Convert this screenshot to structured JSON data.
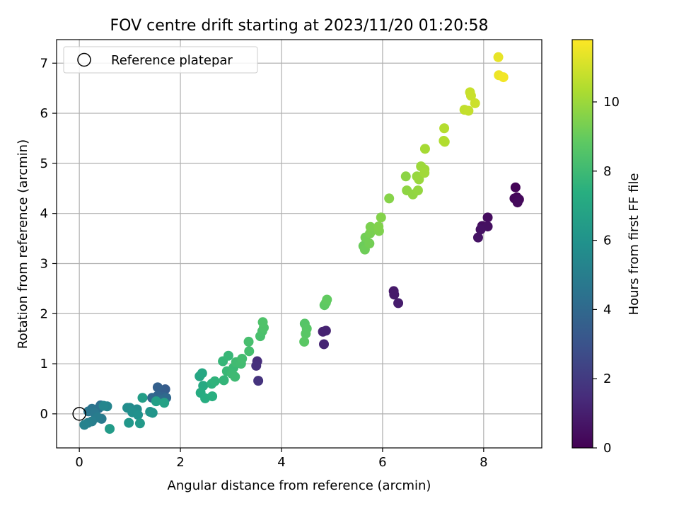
{
  "chart_data": {
    "type": "scatter",
    "title": "FOV centre drift starting at 2023/11/20 01:20:58",
    "xlabel": "Angular distance from reference (arcmin)",
    "ylabel": "Rotation from reference (arcmin)",
    "xlim": [
      -0.45,
      9.15
    ],
    "ylim": [
      -0.68,
      7.47
    ],
    "xticks": [
      0,
      2,
      4,
      6,
      8
    ],
    "yticks": [
      0,
      1,
      2,
      3,
      4,
      5,
      6,
      7
    ],
    "grid": true,
    "legend": {
      "placement": "upper-left",
      "entries": [
        {
          "label": "Reference platepar",
          "marker": "open-circle"
        }
      ]
    },
    "reference_point": {
      "x": 0,
      "y": 0
    },
    "colorbar": {
      "label": "Hours from first FF file",
      "colormap": "viridis",
      "range": [
        0,
        11.8
      ],
      "ticks": [
        0,
        2,
        4,
        6,
        8,
        10
      ]
    },
    "series": [
      {
        "points": [
          {
            "x": 8.63,
            "y": 4.52,
            "c": 0.1
          },
          {
            "x": 8.66,
            "y": 4.32,
            "c": 0.15
          },
          {
            "x": 8.61,
            "y": 4.3,
            "c": 0.2
          },
          {
            "x": 8.7,
            "y": 4.28,
            "c": 0.25
          },
          {
            "x": 8.67,
            "y": 4.22,
            "c": 0.3
          },
          {
            "x": 8.08,
            "y": 3.92,
            "c": 0.4
          },
          {
            "x": 7.97,
            "y": 3.75,
            "c": 0.45
          },
          {
            "x": 8.08,
            "y": 3.74,
            "c": 0.5
          },
          {
            "x": 7.94,
            "y": 3.68,
            "c": 0.55
          },
          {
            "x": 7.89,
            "y": 3.52,
            "c": 0.6
          },
          {
            "x": 6.22,
            "y": 2.45,
            "c": 0.8
          },
          {
            "x": 6.23,
            "y": 2.38,
            "c": 0.85
          },
          {
            "x": 6.31,
            "y": 2.21,
            "c": 0.9
          },
          {
            "x": 4.82,
            "y": 1.64,
            "c": 1.1
          },
          {
            "x": 4.88,
            "y": 1.66,
            "c": 1.15
          },
          {
            "x": 4.84,
            "y": 1.39,
            "c": 1.2
          },
          {
            "x": 3.52,
            "y": 1.05,
            "c": 1.5
          },
          {
            "x": 3.5,
            "y": 0.96,
            "c": 1.6
          },
          {
            "x": 3.54,
            "y": 0.66,
            "c": 1.7
          },
          {
            "x": 1.7,
            "y": 0.49,
            "c": 3.4
          },
          {
            "x": 1.62,
            "y": 0.46,
            "c": 3.5
          },
          {
            "x": 1.55,
            "y": 0.53,
            "c": 3.6
          },
          {
            "x": 1.67,
            "y": 0.34,
            "c": 3.7
          },
          {
            "x": 1.55,
            "y": 0.36,
            "c": 3.8
          },
          {
            "x": 1.44,
            "y": 0.32,
            "c": 3.9
          },
          {
            "x": 1.72,
            "y": 0.32,
            "c": 4.0
          },
          {
            "x": 1.6,
            "y": 0.28,
            "c": 4.1
          },
          {
            "x": 0.42,
            "y": 0.17,
            "c": 4.3
          },
          {
            "x": 0.38,
            "y": 0.11,
            "c": 4.4
          },
          {
            "x": 0.25,
            "y": 0.1,
            "c": 4.5
          },
          {
            "x": 0.18,
            "y": 0.05,
            "c": 4.6
          },
          {
            "x": 0.3,
            "y": 0.02,
            "c": 4.7
          },
          {
            "x": 0.44,
            "y": -0.1,
            "c": 4.8
          },
          {
            "x": 0.36,
            "y": -0.07,
            "c": 4.9
          },
          {
            "x": 0.25,
            "y": -0.15,
            "c": 5.0
          },
          {
            "x": 0.17,
            "y": -0.18,
            "c": 5.1
          },
          {
            "x": 0.1,
            "y": -0.22,
            "c": 5.2
          },
          {
            "x": 0.55,
            "y": 0.15,
            "c": 5.3
          },
          {
            "x": 0.48,
            "y": 0.16,
            "c": 5.4
          },
          {
            "x": 1.0,
            "y": 0.12,
            "c": 5.5
          },
          {
            "x": 1.14,
            "y": 0.09,
            "c": 5.6
          },
          {
            "x": 0.95,
            "y": 0.12,
            "c": 5.7
          },
          {
            "x": 1.05,
            "y": 0.03,
            "c": 5.8
          },
          {
            "x": 1.16,
            "y": -0.02,
            "c": 5.9
          },
          {
            "x": 1.4,
            "y": 0.04,
            "c": 6.0
          },
          {
            "x": 1.45,
            "y": 0.02,
            "c": 6.1
          },
          {
            "x": 0.98,
            "y": -0.18,
            "c": 6.2
          },
          {
            "x": 1.2,
            "y": -0.19,
            "c": 6.3
          },
          {
            "x": 0.6,
            "y": -0.3,
            "c": 6.4
          },
          {
            "x": 1.25,
            "y": 0.32,
            "c": 6.5
          },
          {
            "x": 1.52,
            "y": 0.25,
            "c": 6.6
          },
          {
            "x": 1.68,
            "y": 0.22,
            "c": 6.7
          },
          {
            "x": 2.38,
            "y": 0.75,
            "c": 6.9
          },
          {
            "x": 2.43,
            "y": 0.81,
            "c": 7.0
          },
          {
            "x": 2.45,
            "y": 0.56,
            "c": 7.1
          },
          {
            "x": 2.4,
            "y": 0.42,
            "c": 7.2
          },
          {
            "x": 2.49,
            "y": 0.31,
            "c": 7.3
          },
          {
            "x": 2.63,
            "y": 0.35,
            "c": 7.4
          },
          {
            "x": 2.62,
            "y": 0.6,
            "c": 7.5
          },
          {
            "x": 2.68,
            "y": 0.65,
            "c": 7.6
          },
          {
            "x": 2.86,
            "y": 0.67,
            "c": 7.7
          },
          {
            "x": 2.84,
            "y": 1.05,
            "c": 7.75
          },
          {
            "x": 2.95,
            "y": 1.16,
            "c": 7.8
          },
          {
            "x": 2.92,
            "y": 0.85,
            "c": 7.85
          },
          {
            "x": 3.05,
            "y": 0.92,
            "c": 7.9
          },
          {
            "x": 3.02,
            "y": 0.8,
            "c": 7.95
          },
          {
            "x": 3.08,
            "y": 0.74,
            "c": 8.0
          },
          {
            "x": 3.1,
            "y": 1.03,
            "c": 8.05
          },
          {
            "x": 3.2,
            "y": 1.0,
            "c": 8.1
          },
          {
            "x": 3.22,
            "y": 1.1,
            "c": 8.15
          },
          {
            "x": 3.36,
            "y": 1.25,
            "c": 8.2
          },
          {
            "x": 3.35,
            "y": 1.44,
            "c": 8.25
          },
          {
            "x": 3.58,
            "y": 1.55,
            "c": 8.3
          },
          {
            "x": 3.62,
            "y": 1.65,
            "c": 8.35
          },
          {
            "x": 3.65,
            "y": 1.72,
            "c": 8.4
          },
          {
            "x": 3.63,
            "y": 1.83,
            "c": 8.45
          },
          {
            "x": 4.46,
            "y": 1.8,
            "c": 8.6
          },
          {
            "x": 4.5,
            "y": 1.7,
            "c": 8.65
          },
          {
            "x": 4.48,
            "y": 1.6,
            "c": 8.7
          },
          {
            "x": 4.45,
            "y": 1.44,
            "c": 8.75
          },
          {
            "x": 4.85,
            "y": 2.17,
            "c": 8.8
          },
          {
            "x": 4.88,
            "y": 2.22,
            "c": 8.85
          },
          {
            "x": 4.9,
            "y": 2.28,
            "c": 8.9
          },
          {
            "x": 5.62,
            "y": 3.35,
            "c": 9.1
          },
          {
            "x": 5.65,
            "y": 3.28,
            "c": 9.15
          },
          {
            "x": 5.66,
            "y": 3.52,
            "c": 9.2
          },
          {
            "x": 5.74,
            "y": 3.4,
            "c": 9.25
          },
          {
            "x": 5.75,
            "y": 3.6,
            "c": 9.3
          },
          {
            "x": 5.78,
            "y": 3.65,
            "c": 9.35
          },
          {
            "x": 5.76,
            "y": 3.73,
            "c": 9.4
          },
          {
            "x": 5.93,
            "y": 3.65,
            "c": 9.45
          },
          {
            "x": 5.92,
            "y": 3.74,
            "c": 9.5
          },
          {
            "x": 5.97,
            "y": 3.92,
            "c": 9.55
          },
          {
            "x": 6.13,
            "y": 4.3,
            "c": 9.6
          },
          {
            "x": 6.46,
            "y": 4.74,
            "c": 9.7
          },
          {
            "x": 6.48,
            "y": 4.46,
            "c": 9.75
          },
          {
            "x": 6.6,
            "y": 4.38,
            "c": 9.8
          },
          {
            "x": 6.7,
            "y": 4.46,
            "c": 9.85
          },
          {
            "x": 6.68,
            "y": 4.74,
            "c": 9.9
          },
          {
            "x": 6.72,
            "y": 4.68,
            "c": 9.95
          },
          {
            "x": 6.76,
            "y": 4.94,
            "c": 10.0
          },
          {
            "x": 6.83,
            "y": 4.88,
            "c": 10.05
          },
          {
            "x": 6.83,
            "y": 4.81,
            "c": 10.1
          },
          {
            "x": 6.84,
            "y": 5.29,
            "c": 10.2
          },
          {
            "x": 7.21,
            "y": 5.45,
            "c": 10.35
          },
          {
            "x": 7.23,
            "y": 5.43,
            "c": 10.4
          },
          {
            "x": 7.22,
            "y": 5.7,
            "c": 10.45
          },
          {
            "x": 7.62,
            "y": 6.07,
            "c": 10.7
          },
          {
            "x": 7.7,
            "y": 6.05,
            "c": 10.75
          },
          {
            "x": 7.73,
            "y": 6.42,
            "c": 10.8
          },
          {
            "x": 7.75,
            "y": 6.35,
            "c": 10.85
          },
          {
            "x": 7.83,
            "y": 6.2,
            "c": 10.9
          },
          {
            "x": 8.29,
            "y": 7.12,
            "c": 11.4
          },
          {
            "x": 8.3,
            "y": 6.76,
            "c": 11.5
          },
          {
            "x": 8.39,
            "y": 6.72,
            "c": 11.6
          }
        ]
      }
    ]
  }
}
